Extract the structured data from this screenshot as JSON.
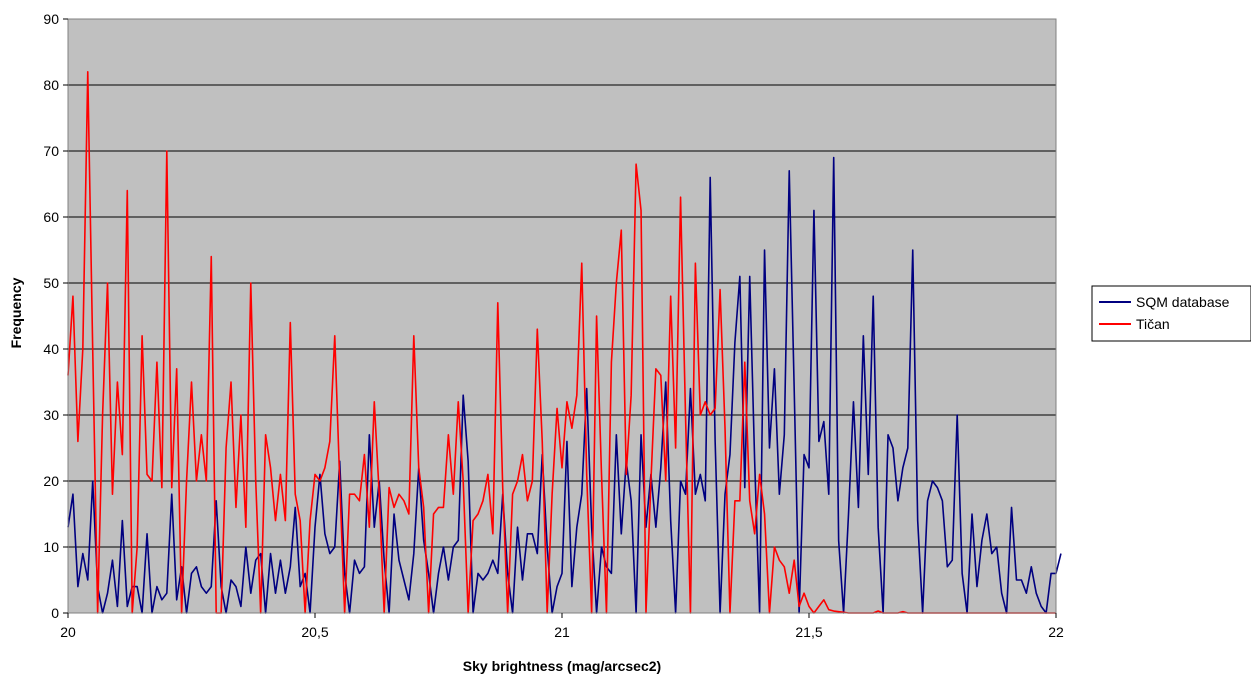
{
  "chart_data": {
    "type": "line",
    "xlabel": "Sky brightness (mag/arcsec2)",
    "ylabel": "Frequency",
    "xlim": [
      20,
      22
    ],
    "ylim": [
      0,
      90
    ],
    "x_ticks": [
      20,
      20.5,
      21,
      21.5,
      22
    ],
    "x_tick_labels": [
      "20",
      "20,5",
      "21",
      "21,5",
      "22"
    ],
    "y_ticks": [
      0,
      10,
      20,
      30,
      40,
      50,
      60,
      70,
      80,
      90
    ],
    "y_tick_labels": [
      "0",
      "10",
      "20",
      "30",
      "40",
      "50",
      "60",
      "70",
      "80",
      "90"
    ],
    "grid": "horizontal",
    "plot_background": "#c0c0c0",
    "legend": "right",
    "series": [
      {
        "name": "SQM database",
        "color": "#000080",
        "x_start": 20.0,
        "x_step": 0.01,
        "values": [
          13,
          18,
          4,
          9,
          5,
          20,
          4,
          0,
          3,
          8,
          1,
          14,
          1,
          4,
          4,
          0,
          12,
          0,
          4,
          2,
          3,
          18,
          2,
          7,
          0,
          6,
          7,
          4,
          3,
          4,
          17,
          4,
          0,
          5,
          4,
          1,
          10,
          3,
          8,
          9,
          0,
          9,
          3,
          8,
          3,
          7,
          16,
          4,
          6,
          0,
          13,
          21,
          12,
          9,
          10,
          23,
          6,
          0,
          8,
          6,
          7,
          27,
          13,
          20,
          8,
          0,
          15,
          8,
          5,
          2,
          9,
          22,
          11,
          6,
          0,
          6,
          10,
          5,
          10,
          11,
          33,
          23,
          0,
          6,
          5,
          6,
          8,
          6,
          18,
          6,
          0,
          13,
          5,
          12,
          12,
          9,
          24,
          10,
          0,
          4,
          6,
          26,
          4,
          13,
          18,
          34,
          13,
          0,
          10,
          7,
          6,
          27,
          12,
          23,
          17,
          0,
          27,
          13,
          21,
          13,
          22,
          35,
          14,
          0,
          20,
          18,
          34,
          18,
          21,
          17,
          66,
          26,
          0,
          18,
          24,
          41,
          51,
          19,
          51,
          23,
          0,
          55,
          25,
          37,
          18,
          27,
          67,
          34,
          0,
          24,
          22,
          61,
          26,
          29,
          18,
          69,
          11,
          0,
          15,
          32,
          16,
          42,
          21,
          48,
          13,
          0,
          27,
          25,
          17,
          22,
          25,
          55,
          14,
          0,
          17,
          20,
          19,
          17,
          7,
          8,
          30,
          6,
          0,
          15,
          4,
          11,
          15,
          9,
          10,
          3,
          0,
          16,
          5,
          5,
          3,
          7,
          3,
          1,
          0,
          6,
          6,
          9
        ]
      },
      {
        "name": "Tičan",
        "color": "#ff0000",
        "x_start": 20.0,
        "x_step": 0.01,
        "values": [
          36,
          48,
          26,
          40,
          82,
          40,
          0,
          30,
          50,
          18,
          35,
          24,
          64,
          0,
          10,
          42,
          21,
          20,
          38,
          19,
          70,
          19,
          37,
          0,
          20,
          35,
          20,
          27,
          20,
          54,
          0,
          0,
          25,
          35,
          16,
          30,
          13,
          50,
          20,
          0,
          27,
          22,
          14,
          21,
          14,
          44,
          18,
          14,
          0,
          14,
          21,
          20,
          22,
          26,
          42,
          20,
          0,
          18,
          18,
          17,
          24,
          13,
          32,
          18,
          0,
          19,
          16,
          18,
          17,
          15,
          42,
          22,
          16,
          0,
          15,
          16,
          16,
          27,
          18,
          32,
          20,
          0,
          14,
          15,
          17,
          21,
          12,
          47,
          19,
          0,
          18,
          20,
          24,
          17,
          20,
          43,
          26,
          0,
          18,
          31,
          22,
          32,
          28,
          33,
          53,
          21,
          0,
          45,
          21,
          0,
          38,
          50,
          58,
          21,
          33,
          68,
          61,
          0,
          20,
          37,
          36,
          20,
          48,
          25,
          63,
          30,
          0,
          53,
          30,
          32,
          30,
          31,
          49,
          28,
          0,
          17,
          17,
          38,
          17,
          12,
          21,
          15,
          0,
          10,
          8,
          7,
          3,
          8,
          1,
          3,
          1,
          0,
          1,
          2,
          0.5,
          0.3,
          0.2,
          0.1,
          0,
          0,
          0,
          0,
          0,
          0,
          0.3,
          0,
          0,
          0,
          0,
          0.2,
          0,
          0,
          0,
          0,
          0,
          0,
          0,
          0,
          0,
          0,
          0,
          0,
          0,
          0,
          0,
          0,
          0,
          0,
          0,
          0,
          0,
          0,
          0,
          0,
          0,
          0,
          0,
          0,
          0,
          0,
          0
        ]
      }
    ]
  }
}
